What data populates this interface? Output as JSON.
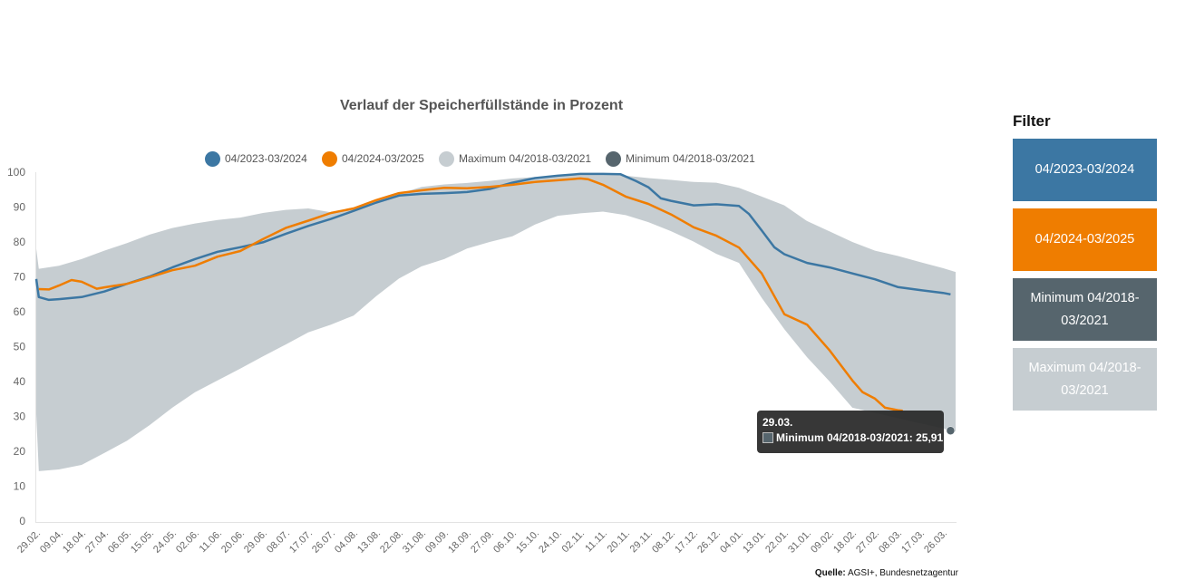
{
  "title": "Verlauf der Speicherfüllstände in Prozent",
  "legend": [
    {
      "label": "04/2023-03/2024",
      "color": "#3c77a3"
    },
    {
      "label": "04/2024-03/2025",
      "color": "#ef7d00"
    },
    {
      "label": "Maximum 04/2018-03/2021",
      "color": "#c6cdd1"
    },
    {
      "label": "Minimum 04/2018-03/2021",
      "color": "#56656d"
    }
  ],
  "filter": {
    "title": "Filter",
    "buttons": [
      {
        "label": "04/2023-03/2024",
        "color": "#3c77a3"
      },
      {
        "label": "04/2024-03/2025",
        "color": "#ef7d00"
      },
      {
        "label": "Minimum 04/2018-03/2021",
        "color": "#56656d"
      },
      {
        "label": "Maximum 04/2018-03/2021",
        "color": "#c6cdd1"
      }
    ]
  },
  "source": {
    "label": "Quelle:",
    "text": " AGSI+, Bundesnetzagentur"
  },
  "tooltip": {
    "date": "29.03.",
    "series": "Minimum 04/2018-03/2021",
    "value": "25,91",
    "color": "#56656d"
  },
  "chart_data": {
    "type": "line",
    "title": "Verlauf der Speicherfüllstände in Prozent",
    "xlabel": "",
    "ylabel": "",
    "x_range": [
      "29.02",
      "31.03"
    ],
    "ylim": [
      0,
      100
    ],
    "y_ticks": [
      0,
      10,
      20,
      30,
      40,
      50,
      60,
      70,
      80,
      90,
      100
    ],
    "x_ticks": [
      "29.02.",
      "09.04.",
      "18.04.",
      "27.04.",
      "06.05.",
      "15.05.",
      "24.05.",
      "02.06.",
      "11.06.",
      "20.06.",
      "29.06.",
      "08.07.",
      "17.07.",
      "26.07.",
      "04.08.",
      "13.08.",
      "22.08.",
      "31.08.",
      "09.09.",
      "18.09.",
      "27.09.",
      "06.10.",
      "15.10.",
      "24.10.",
      "02.11.",
      "11.11.",
      "20.11.",
      "29.11.",
      "08.12.",
      "17.12.",
      "26.12.",
      "04.01.",
      "13.01.",
      "22.01.",
      "31.01.",
      "09.02.",
      "18.02.",
      "27.02.",
      "08.03.",
      "17.03.",
      "26.03."
    ],
    "grid": false,
    "legend_position": "top-center",
    "band": {
      "name_upper": "Maximum 04/2018-03/2021",
      "name_lower": "Minimum 04/2018-03/2021",
      "color": "#c6cdd1",
      "upper": [
        [
          "29.02",
          78.0
        ],
        [
          "01.04",
          72.3
        ],
        [
          "09.04",
          73.2
        ],
        [
          "18.04",
          75.1
        ],
        [
          "27.04",
          77.5
        ],
        [
          "06.05",
          79.7
        ],
        [
          "15.05",
          82.1
        ],
        [
          "24.05",
          84.0
        ],
        [
          "02.06",
          85.3
        ],
        [
          "11.06",
          86.3
        ],
        [
          "20.06",
          87.0
        ],
        [
          "29.06",
          88.3
        ],
        [
          "08.07",
          89.2
        ],
        [
          "17.07",
          89.6
        ],
        [
          "26.07",
          88.5
        ],
        [
          "04.08",
          89.5
        ],
        [
          "13.08",
          91.5
        ],
        [
          "22.08",
          93.8
        ],
        [
          "31.08",
          95.8
        ],
        [
          "09.09",
          96.5
        ],
        [
          "18.09",
          96.9
        ],
        [
          "27.09",
          97.5
        ],
        [
          "06.10",
          98.2
        ],
        [
          "15.10",
          98.6
        ],
        [
          "24.10",
          99.0
        ],
        [
          "02.11",
          99.5
        ],
        [
          "11.11",
          99.6
        ],
        [
          "20.11",
          99.0
        ],
        [
          "29.11",
          98.3
        ],
        [
          "08.12",
          97.8
        ],
        [
          "17.12",
          97.2
        ],
        [
          "26.12",
          97.0
        ],
        [
          "04.01",
          95.5
        ],
        [
          "13.01",
          93.0
        ],
        [
          "22.01",
          90.5
        ],
        [
          "31.01",
          86.0
        ],
        [
          "09.02",
          83.0
        ],
        [
          "18.02",
          80.0
        ],
        [
          "27.02",
          77.5
        ],
        [
          "08.03",
          76.0
        ],
        [
          "17.03",
          74.2
        ],
        [
          "26.03",
          72.5
        ],
        [
          "31.03",
          71.4
        ]
      ],
      "lower": [
        [
          "29.02",
          30.6
        ],
        [
          "01.04",
          14.3
        ],
        [
          "09.04",
          14.8
        ],
        [
          "18.04",
          16.1
        ],
        [
          "27.04",
          19.5
        ],
        [
          "06.05",
          23.0
        ],
        [
          "15.05",
          27.5
        ],
        [
          "24.05",
          32.5
        ],
        [
          "02.06",
          36.9
        ],
        [
          "11.06",
          40.3
        ],
        [
          "20.06",
          43.7
        ],
        [
          "29.06",
          47.2
        ],
        [
          "08.07",
          50.6
        ],
        [
          "17.07",
          54.1
        ],
        [
          "26.07",
          56.3
        ],
        [
          "04.08",
          58.9
        ],
        [
          "13.08",
          64.5
        ],
        [
          "22.08",
          69.5
        ],
        [
          "31.08",
          73.0
        ],
        [
          "09.09",
          75.1
        ],
        [
          "18.09",
          78.1
        ],
        [
          "27.09",
          80.0
        ],
        [
          "06.10",
          81.6
        ],
        [
          "15.10",
          85.0
        ],
        [
          "24.10",
          87.5
        ],
        [
          "02.11",
          88.2
        ],
        [
          "11.11",
          88.7
        ],
        [
          "20.11",
          87.7
        ],
        [
          "29.11",
          85.7
        ],
        [
          "08.12",
          83.1
        ],
        [
          "17.12",
          80.1
        ],
        [
          "26.12",
          76.6
        ],
        [
          "04.01",
          74.0
        ],
        [
          "13.01",
          64.0
        ],
        [
          "22.01",
          55.0
        ],
        [
          "31.01",
          47.0
        ],
        [
          "09.02",
          40.0
        ],
        [
          "18.02",
          32.5
        ],
        [
          "27.02",
          31.0
        ],
        [
          "08.03",
          29.5
        ],
        [
          "17.03",
          28.0
        ],
        [
          "26.03",
          26.6
        ],
        [
          "29.03",
          25.91
        ],
        [
          "31.03",
          25.7
        ]
      ]
    },
    "series": [
      {
        "name": "04/2023-03/2024",
        "color": "#3c77a3",
        "points": [
          [
            "29.02",
            69.4
          ],
          [
            "01.04",
            64.2
          ],
          [
            "05.04",
            63.4
          ],
          [
            "09.04",
            63.6
          ],
          [
            "18.04",
            64.2
          ],
          [
            "27.04",
            65.8
          ],
          [
            "06.05",
            68.0
          ],
          [
            "15.05",
            70.1
          ],
          [
            "24.05",
            72.7
          ],
          [
            "02.06",
            75.1
          ],
          [
            "11.06",
            77.2
          ],
          [
            "20.06",
            78.5
          ],
          [
            "29.06",
            79.9
          ],
          [
            "08.07",
            82.3
          ],
          [
            "17.07",
            84.6
          ],
          [
            "26.07",
            86.6
          ],
          [
            "04.08",
            88.9
          ],
          [
            "13.08",
            91.3
          ],
          [
            "22.08",
            93.3
          ],
          [
            "31.08",
            93.8
          ],
          [
            "09.09",
            94.0
          ],
          [
            "18.09",
            94.3
          ],
          [
            "27.09",
            95.2
          ],
          [
            "06.10",
            97.0
          ],
          [
            "15.10",
            98.3
          ],
          [
            "24.10",
            99.0
          ],
          [
            "02.11",
            99.5
          ],
          [
            "11.11",
            99.5
          ],
          [
            "18.11",
            99.4
          ],
          [
            "24.11",
            97.5
          ],
          [
            "29.11",
            95.7
          ],
          [
            "04.12",
            92.5
          ],
          [
            "08.12",
            91.8
          ],
          [
            "17.12",
            90.5
          ],
          [
            "26.12",
            90.8
          ],
          [
            "04.01",
            90.3
          ],
          [
            "08.01",
            88.0
          ],
          [
            "13.01",
            83.3
          ],
          [
            "18.01",
            78.5
          ],
          [
            "22.01",
            76.5
          ],
          [
            "31.01",
            74.0
          ],
          [
            "09.02",
            72.7
          ],
          [
            "18.02",
            71.0
          ],
          [
            "27.02",
            69.3
          ],
          [
            "08.03",
            67.1
          ],
          [
            "17.03",
            66.2
          ],
          [
            "26.03",
            65.4
          ],
          [
            "29.03",
            65.0
          ]
        ]
      },
      {
        "name": "04/2024-03/2025",
        "color": "#ef7d00",
        "points": [
          [
            "01.04",
            66.5
          ],
          [
            "05.04",
            66.4
          ],
          [
            "09.04",
            67.5
          ],
          [
            "14.04",
            69.1
          ],
          [
            "18.04",
            68.6
          ],
          [
            "24.04",
            66.6
          ],
          [
            "27.04",
            67.0
          ],
          [
            "06.05",
            68.0
          ],
          [
            "15.05",
            69.9
          ],
          [
            "24.05",
            71.9
          ],
          [
            "02.06",
            73.2
          ],
          [
            "11.06",
            75.8
          ],
          [
            "20.06",
            77.4
          ],
          [
            "29.06",
            80.8
          ],
          [
            "08.07",
            84.0
          ],
          [
            "17.07",
            86.1
          ],
          [
            "26.07",
            88.3
          ],
          [
            "04.08",
            89.6
          ],
          [
            "13.08",
            92.0
          ],
          [
            "22.08",
            94.0
          ],
          [
            "31.08",
            94.8
          ],
          [
            "09.09",
            95.5
          ],
          [
            "18.09",
            95.4
          ],
          [
            "27.09",
            95.8
          ],
          [
            "06.10",
            96.4
          ],
          [
            "15.10",
            97.2
          ],
          [
            "24.10",
            97.7
          ],
          [
            "02.11",
            98.2
          ],
          [
            "05.11",
            98.0
          ],
          [
            "11.11",
            96.4
          ],
          [
            "20.11",
            93.0
          ],
          [
            "29.11",
            90.9
          ],
          [
            "08.12",
            87.9
          ],
          [
            "17.12",
            84.2
          ],
          [
            "26.12",
            81.8
          ],
          [
            "04.01",
            78.4
          ],
          [
            "13.01",
            71.0
          ],
          [
            "22.01",
            59.3
          ],
          [
            "31.01",
            56.3
          ],
          [
            "09.02",
            48.9
          ],
          [
            "18.02",
            40.3
          ],
          [
            "22.02",
            37.0
          ],
          [
            "27.02",
            35.1
          ],
          [
            "03.03",
            32.5
          ],
          [
            "08.03",
            31.8
          ],
          [
            "10.03",
            31.6
          ]
        ]
      }
    ],
    "highlight": {
      "series": "Minimum 04/2018-03/2021",
      "date": "29.03",
      "value": 25.91
    }
  }
}
